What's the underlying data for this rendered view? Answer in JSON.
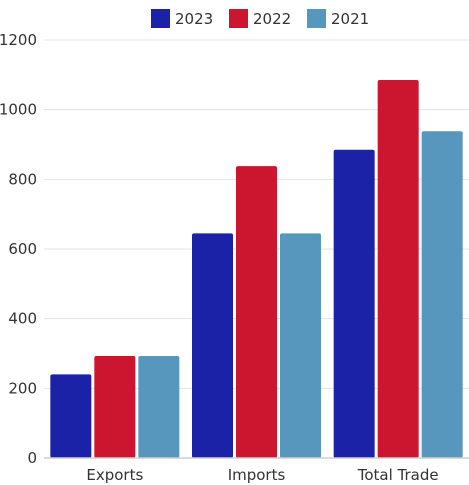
{
  "chart_data": {
    "type": "bar",
    "categories": [
      "Exports",
      "Imports",
      "Total Trade"
    ],
    "series": [
      {
        "name": "2023",
        "color": "#1c22a8",
        "values": [
          240,
          645,
          885
        ]
      },
      {
        "name": "2022",
        "color": "#cc162f",
        "values": [
          293,
          838,
          1085
        ]
      },
      {
        "name": "2021",
        "color": "#5796bd",
        "values": [
          293,
          645,
          938
        ]
      }
    ],
    "yticks": [
      0,
      200,
      400,
      600,
      800,
      1000,
      1200
    ],
    "ylim": [
      0,
      1200
    ],
    "grid": true,
    "legend_position": "top"
  }
}
